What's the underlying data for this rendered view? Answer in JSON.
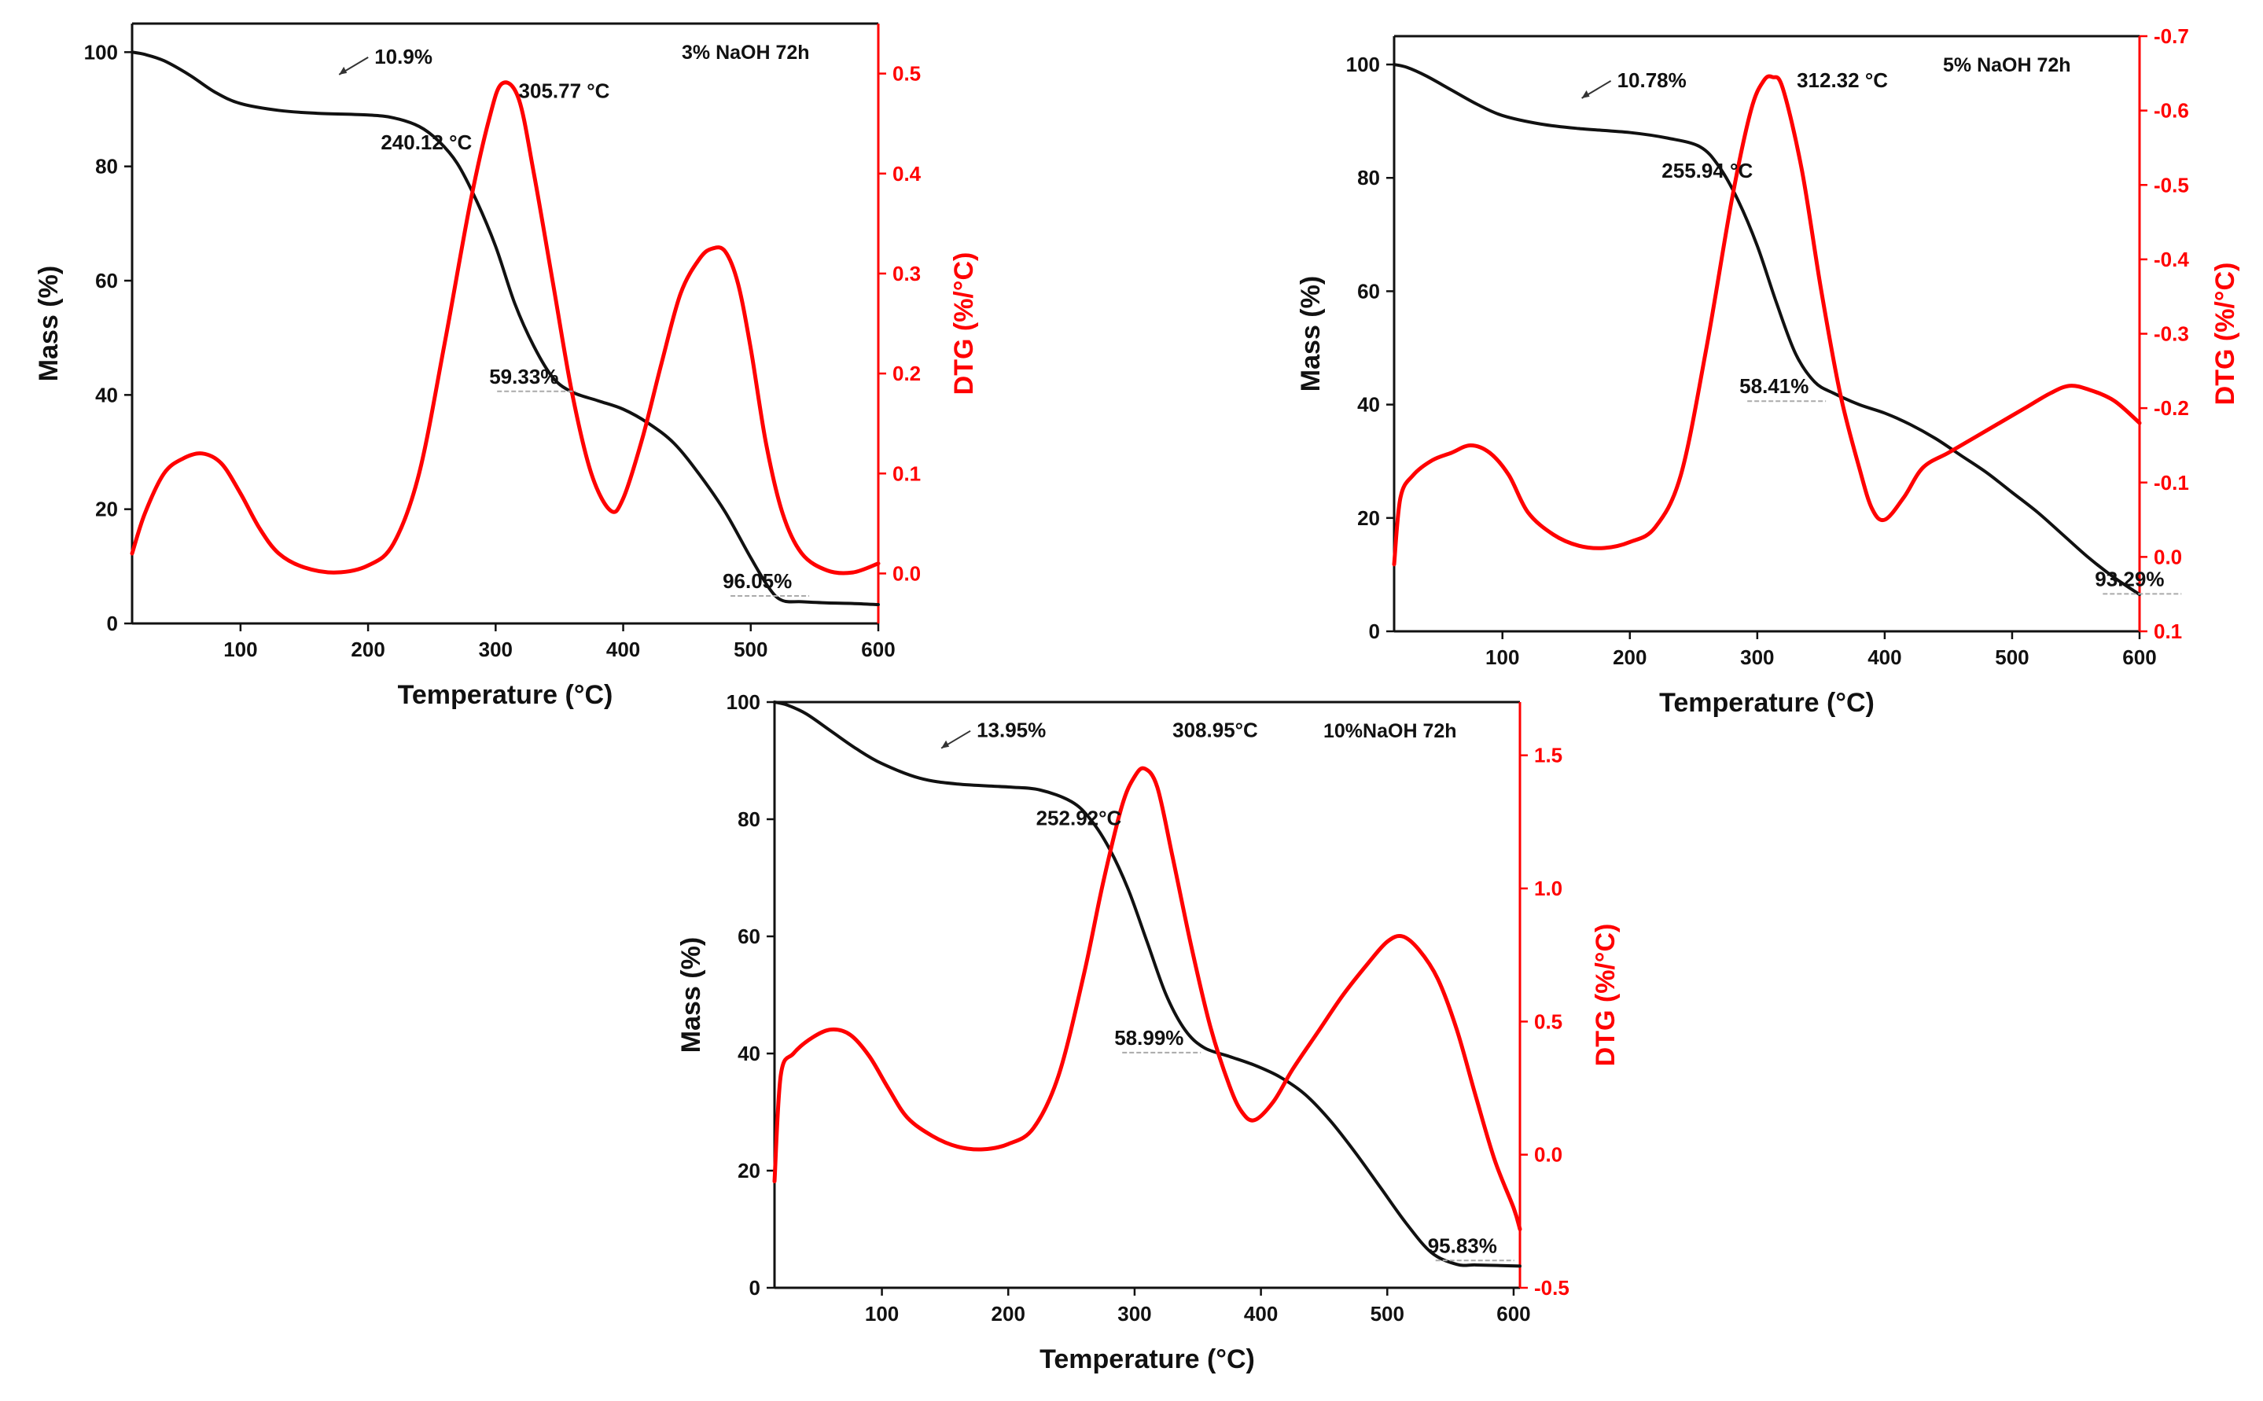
{
  "chart_data": [
    {
      "type": "line",
      "title": "3% NaOH 72h",
      "xlabel": "Temperature (°C)",
      "ylabel": "Mass (%)",
      "y2label": "DTG (%/°C)",
      "xlim": [
        15,
        600
      ],
      "ylim": [
        0,
        105
      ],
      "y2lim": [
        -0.05,
        0.55
      ],
      "y2_inverted": false,
      "x_ticks": [
        100,
        200,
        300,
        400,
        500,
        600
      ],
      "y_ticks": [
        0,
        20,
        40,
        60,
        80,
        100
      ],
      "y2_ticks": [
        0.0,
        0.1,
        0.2,
        0.3,
        0.4,
        0.5
      ],
      "y2_tick_labels": [
        "0.0",
        "0.1",
        "0.2",
        "0.3",
        "0.4",
        "0.5"
      ],
      "series": [
        {
          "name": "Mass",
          "color": "#111111",
          "axis": "left",
          "x": [
            15,
            25,
            40,
            60,
            80,
            100,
            130,
            160,
            200,
            220,
            240,
            255,
            270,
            285,
            300,
            315,
            330,
            345,
            360,
            380,
            400,
            420,
            440,
            460,
            480,
            500,
            515,
            525,
            540,
            560,
            580,
            600
          ],
          "y": [
            100,
            99.6,
            98.5,
            96,
            93,
            91,
            89.8,
            89.3,
            89,
            88.5,
            87,
            84.5,
            80.5,
            74,
            66,
            56,
            48.5,
            43,
            40.5,
            39,
            37.5,
            35,
            31.5,
            26,
            19.5,
            11.5,
            6,
            4,
            3.8,
            3.6,
            3.5,
            3.3
          ]
        },
        {
          "name": "DTG",
          "color": "#ff0000",
          "axis": "right",
          "x": [
            15,
            25,
            40,
            55,
            70,
            85,
            100,
            115,
            130,
            150,
            175,
            200,
            220,
            240,
            260,
            280,
            295,
            305,
            318,
            330,
            345,
            360,
            375,
            390,
            400,
            415,
            430,
            445,
            460,
            470,
            480,
            490,
            500,
            512,
            525,
            540,
            560,
            580,
            600
          ],
          "y": [
            0.02,
            0.06,
            0.1,
            0.115,
            0.12,
            0.11,
            0.08,
            0.045,
            0.02,
            0.006,
            0.001,
            0.008,
            0.03,
            0.1,
            0.23,
            0.37,
            0.455,
            0.49,
            0.475,
            0.4,
            0.29,
            0.18,
            0.1,
            0.063,
            0.075,
            0.135,
            0.21,
            0.28,
            0.315,
            0.325,
            0.322,
            0.29,
            0.225,
            0.13,
            0.06,
            0.02,
            0.003,
            0.001,
            0.01
          ]
        }
      ],
      "annotations": [
        {
          "text": "10.9%",
          "x": 205,
          "y": 98
        },
        {
          "text": "305.77 °C",
          "x": 318,
          "y": 92
        },
        {
          "text": "240.12 °C",
          "x": 210,
          "y": 83
        },
        {
          "text": "59.33%",
          "x": 295,
          "y": 42
        },
        {
          "text": "96.05%",
          "x": 478,
          "y": 6.2
        }
      ]
    },
    {
      "type": "line",
      "title": "5% NaOH 72h",
      "xlabel": "Temperature (°C)",
      "ylabel": "Mass (%)",
      "y2label": "DTG (%/°C)",
      "xlim": [
        15,
        600
      ],
      "ylim": [
        0,
        105
      ],
      "y2lim": [
        0.1,
        -0.7
      ],
      "y2_inverted": true,
      "x_ticks": [
        100,
        200,
        300,
        400,
        500,
        600
      ],
      "y_ticks": [
        0,
        20,
        40,
        60,
        80,
        100
      ],
      "y2_ticks": [
        0.1,
        0.0,
        -0.1,
        -0.2,
        -0.3,
        -0.4,
        -0.5,
        -0.6,
        -0.7
      ],
      "y2_tick_labels": [
        "0.1",
        "0.0",
        "-0.1",
        "-0.2",
        "-0.3",
        "-0.4",
        "-0.5",
        "-0.6",
        "-0.7"
      ],
      "series": [
        {
          "name": "Mass",
          "color": "#111111",
          "axis": "left",
          "x": [
            15,
            25,
            40,
            60,
            80,
            100,
            130,
            160,
            200,
            230,
            255,
            270,
            285,
            300,
            315,
            330,
            345,
            360,
            380,
            400,
            420,
            440,
            460,
            480,
            500,
            520,
            540,
            560,
            580,
            600
          ],
          "y": [
            100,
            99.5,
            98,
            95.5,
            93,
            91,
            89.5,
            88.7,
            88,
            87,
            85.5,
            82,
            76,
            68,
            58,
            49,
            44,
            42,
            40,
            38.5,
            36.5,
            34,
            31,
            28,
            24.5,
            21,
            17,
            13,
            9.5,
            6.5
          ]
        },
        {
          "name": "DTG",
          "color": "#ff0000",
          "axis": "right",
          "x": [
            15,
            20,
            30,
            45,
            60,
            75,
            90,
            105,
            120,
            140,
            160,
            180,
            200,
            220,
            240,
            260,
            280,
            295,
            305,
            312,
            320,
            335,
            350,
            365,
            380,
            390,
            400,
            415,
            430,
            450,
            470,
            490,
            510,
            530,
            545,
            560,
            580,
            600
          ],
          "y": [
            0.01,
            -0.08,
            -0.11,
            -0.13,
            -0.14,
            -0.15,
            -0.14,
            -0.11,
            -0.06,
            -0.03,
            -0.015,
            -0.012,
            -0.02,
            -0.04,
            -0.11,
            -0.28,
            -0.48,
            -0.6,
            -0.64,
            -0.645,
            -0.63,
            -0.52,
            -0.36,
            -0.22,
            -0.12,
            -0.065,
            -0.05,
            -0.08,
            -0.12,
            -0.14,
            -0.16,
            -0.18,
            -0.2,
            -0.22,
            -0.23,
            -0.225,
            -0.21,
            -0.18
          ]
        }
      ],
      "annotations": [
        {
          "text": "10.78%",
          "x": 190,
          "y": 96
        },
        {
          "text": "312.32 °C",
          "x": 331,
          "y": 96
        },
        {
          "text": "255.94 °C",
          "x": 225,
          "y": 80
        },
        {
          "text": "58.41%",
          "x": 286,
          "y": 42
        },
        {
          "text": "93.29%",
          "x": 565,
          "y": 8
        }
      ]
    },
    {
      "type": "line",
      "title": "10%NaOH 72h",
      "xlabel": "Temperature (°C)",
      "ylabel": "Mass (%)",
      "y2label": "DTG (%/°C)",
      "xlim": [
        15,
        605
      ],
      "ylim": [
        0,
        100
      ],
      "y2lim": [
        -0.5,
        1.7
      ],
      "y2_inverted": false,
      "x_ticks": [
        100,
        200,
        300,
        400,
        500,
        600
      ],
      "y_ticks": [
        0,
        20,
        40,
        60,
        80,
        100
      ],
      "y2_ticks": [
        -0.5,
        0.0,
        0.5,
        1.0,
        1.5
      ],
      "y2_tick_labels": [
        "-0.5",
        "0.0",
        "0.5",
        "1.0",
        "1.5"
      ],
      "series": [
        {
          "name": "Mass",
          "color": "#111111",
          "axis": "left",
          "x": [
            15,
            25,
            40,
            60,
            80,
            100,
            130,
            160,
            200,
            225,
            250,
            265,
            280,
            295,
            310,
            325,
            340,
            355,
            375,
            395,
            415,
            435,
            455,
            475,
            495,
            515,
            535,
            555,
            570,
            590,
            605
          ],
          "y": [
            100,
            99.5,
            98,
            95,
            92,
            89.5,
            87,
            86,
            85.5,
            85,
            83,
            80,
            75,
            68,
            59,
            50,
            44,
            41,
            39.5,
            38,
            36,
            33,
            28.5,
            23,
            17,
            11,
            6,
            4,
            3.9,
            3.8,
            3.7
          ]
        },
        {
          "name": "DTG",
          "color": "#ff0000",
          "axis": "right",
          "x": [
            15,
            20,
            30,
            45,
            60,
            75,
            90,
            105,
            120,
            140,
            160,
            180,
            200,
            220,
            240,
            260,
            275,
            290,
            300,
            308,
            318,
            330,
            345,
            360,
            375,
            385,
            395,
            410,
            425,
            445,
            465,
            485,
            500,
            512,
            525,
            540,
            555,
            570,
            585,
            600,
            605
          ],
          "y": [
            -0.1,
            0.3,
            0.38,
            0.44,
            0.47,
            0.45,
            0.37,
            0.25,
            0.14,
            0.07,
            0.03,
            0.02,
            0.04,
            0.1,
            0.3,
            0.68,
            1.02,
            1.31,
            1.42,
            1.45,
            1.38,
            1.12,
            0.78,
            0.48,
            0.26,
            0.16,
            0.13,
            0.2,
            0.32,
            0.46,
            0.6,
            0.72,
            0.8,
            0.82,
            0.77,
            0.66,
            0.47,
            0.22,
            -0.02,
            -0.2,
            -0.28
          ]
        }
      ],
      "annotations": [
        {
          "text": "13.95%",
          "x": 175,
          "y": 94
        },
        {
          "text": "308.95°C",
          "x": 330,
          "y": 94
        },
        {
          "text": "252.92°C",
          "x": 222,
          "y": 79
        },
        {
          "text": "58.99%",
          "x": 284,
          "y": 41.5
        },
        {
          "text": "95.83%",
          "x": 532,
          "y": 6
        }
      ]
    }
  ]
}
